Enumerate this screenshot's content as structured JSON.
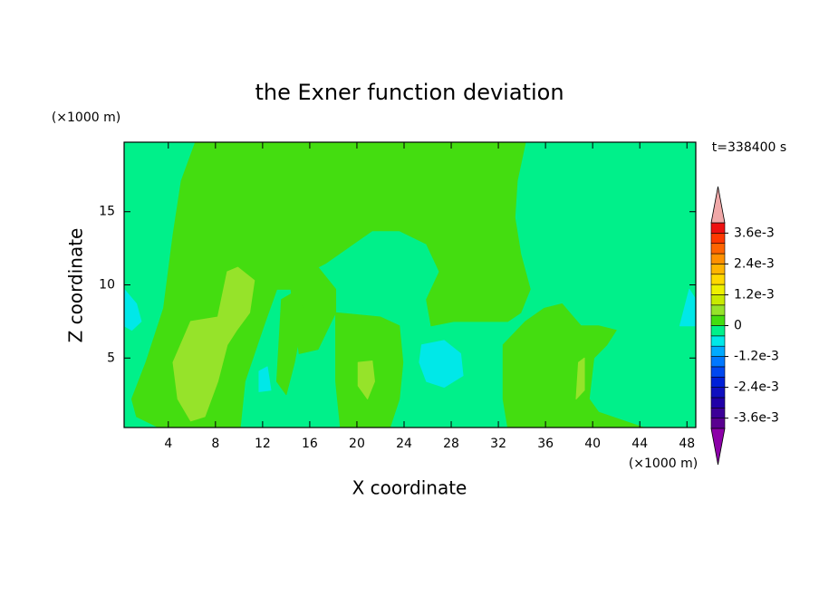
{
  "chart_data": {
    "type": "contour",
    "title": "the Exner function deviation",
    "xlabel": "X coordinate",
    "ylabel": "Z coordinate",
    "xunit": "(×1000 m)",
    "yunit": "(×1000 m)",
    "time_label": "t=338400 s",
    "xlim": [
      0.25,
      48.75
    ],
    "ylim": [
      0.25,
      19.75
    ],
    "xticks": [
      4,
      8,
      12,
      16,
      20,
      24,
      28,
      32,
      36,
      40,
      44,
      48
    ],
    "yticks": [
      5,
      10,
      15
    ],
    "colorbar": {
      "levels": [
        -0.004,
        -0.0036,
        -0.0032,
        -0.0028,
        -0.0024,
        -0.002,
        -0.0016,
        -0.0012,
        -0.0008,
        -0.0004,
        0,
        0.0004,
        0.0008,
        0.0012,
        0.0016,
        0.002,
        0.0024,
        0.0028,
        0.0032,
        0.0036,
        0.004
      ],
      "colors": [
        "#5a0090",
        "#3c0098",
        "#2000a8",
        "#1010c0",
        "#0020d8",
        "#0048f0",
        "#0078ff",
        "#00aaff",
        "#00e8e8",
        "#00f08a",
        "#44dd10",
        "#96e32a",
        "#c8ea00",
        "#eef000",
        "#ffd800",
        "#ffb400",
        "#ff9000",
        "#ff6400",
        "#ff3800",
        "#ee1010"
      ],
      "under_color": "#8c00a8",
      "over_color": "#f0a8a8",
      "ticks": [
        {
          "value": 0.0036,
          "label": "3.6e-3"
        },
        {
          "value": 0.0024,
          "label": "2.4e-3"
        },
        {
          "value": 0.0012,
          "label": "1.2e-3"
        },
        0,
        {
          "value": -0.0012,
          "label": "-1.2e-3"
        },
        {
          "value": -0.0024,
          "label": "-2.4e-3"
        },
        {
          "value": -0.0036,
          "label": "-3.6e-3"
        }
      ]
    },
    "contours": [
      {
        "level": -0.0004,
        "points": [
          [
            0.25,
            0.25
          ],
          [
            48.75,
            0.25
          ],
          [
            48.75,
            19.75
          ],
          [
            0.25,
            19.75
          ]
        ]
      },
      {
        "level": 0,
        "points": [
          [
            6.3,
            19.75
          ],
          [
            34.3,
            19.75
          ],
          [
            33.6,
            17.1
          ],
          [
            33.4,
            14.6
          ],
          [
            33.9,
            12.1
          ],
          [
            34.7,
            9.7
          ],
          [
            33.9,
            8.1
          ],
          [
            32.8,
            7.5
          ],
          [
            30.5,
            7.5
          ],
          [
            28.2,
            7.5
          ],
          [
            26.3,
            7.2
          ],
          [
            25.9,
            9.0
          ],
          [
            27.0,
            10.9
          ],
          [
            25.9,
            12.8
          ],
          [
            23.6,
            13.7
          ],
          [
            21.3,
            13.7
          ],
          [
            19.7,
            12.8
          ],
          [
            17.4,
            11.5
          ],
          [
            16.7,
            11.2
          ],
          [
            18.2,
            9.7
          ],
          [
            18.2,
            8.1
          ],
          [
            16.7,
            5.6
          ],
          [
            15.1,
            5.3
          ],
          [
            14.4,
            9.7
          ],
          [
            13.2,
            9.7
          ],
          [
            12.1,
            7.2
          ],
          [
            10.5,
            3.4
          ],
          [
            10.1,
            0.25
          ],
          [
            3.2,
            0.25
          ],
          [
            1.3,
            1.0
          ],
          [
            0.9,
            2.2
          ],
          [
            2.1,
            4.7
          ],
          [
            3.6,
            8.4
          ],
          [
            4.0,
            10.9
          ],
          [
            4.4,
            13.4
          ],
          [
            5.1,
            17.1
          ]
        ]
      },
      {
        "level": 0,
        "points": [
          [
            18.2,
            8.1
          ],
          [
            22.0,
            7.8
          ],
          [
            23.6,
            7.2
          ],
          [
            23.9,
            4.7
          ],
          [
            23.6,
            2.2
          ],
          [
            22.8,
            0.25
          ],
          [
            18.6,
            0.25
          ],
          [
            18.2,
            3.4
          ]
        ]
      },
      {
        "level": 0,
        "points": [
          [
            32.4,
            5.9
          ],
          [
            34.3,
            7.5
          ],
          [
            35.9,
            8.4
          ],
          [
            37.4,
            8.7
          ],
          [
            39.0,
            7.2
          ],
          [
            40.5,
            7.2
          ],
          [
            42.0,
            6.9
          ],
          [
            41.2,
            5.9
          ],
          [
            40.1,
            5.0
          ],
          [
            39.7,
            2.2
          ],
          [
            40.5,
            1.3
          ],
          [
            44.3,
            0.25
          ],
          [
            32.8,
            0.25
          ],
          [
            32.4,
            2.2
          ]
        ]
      },
      {
        "level": 0,
        "points": [
          [
            13.6,
            9.0
          ],
          [
            15.1,
            9.7
          ],
          [
            15.5,
            8.1
          ],
          [
            14.7,
            4.7
          ],
          [
            14.0,
            2.5
          ],
          [
            13.2,
            3.4
          ]
        ]
      },
      {
        "level": 0.0004,
        "points": [
          [
            5.9,
            7.5
          ],
          [
            8.2,
            7.8
          ],
          [
            9.0,
            10.9
          ],
          [
            9.9,
            11.2
          ],
          [
            11.3,
            10.3
          ],
          [
            10.9,
            8.1
          ],
          [
            9.8,
            6.9
          ],
          [
            9.0,
            5.9
          ],
          [
            8.2,
            3.4
          ],
          [
            7.1,
            1.0
          ],
          [
            5.9,
            0.7
          ],
          [
            4.8,
            2.2
          ],
          [
            4.4,
            4.7
          ]
        ]
      },
      {
        "level": 0.0004,
        "points": [
          [
            20.1,
            4.7
          ],
          [
            21.3,
            4.8
          ],
          [
            21.5,
            3.4
          ],
          [
            20.9,
            2.2
          ],
          [
            20.1,
            3.1
          ]
        ]
      },
      {
        "level": 0.0004,
        "points": [
          [
            38.8,
            4.7
          ],
          [
            39.3,
            5.0
          ],
          [
            39.3,
            2.8
          ],
          [
            38.6,
            2.2
          ]
        ]
      },
      {
        "level": -0.0008,
        "points": [
          [
            25.5,
            5.9
          ],
          [
            27.4,
            6.2
          ],
          [
            28.8,
            5.3
          ],
          [
            29.0,
            3.8
          ],
          [
            27.4,
            3.0
          ],
          [
            25.9,
            3.4
          ],
          [
            25.3,
            4.7
          ]
        ]
      },
      {
        "level": -0.0008,
        "points": [
          [
            0.25,
            9.7
          ],
          [
            1.3,
            8.7
          ],
          [
            1.7,
            7.5
          ],
          [
            0.9,
            6.9
          ],
          [
            0.25,
            7.2
          ]
        ]
      },
      {
        "level": -0.0008,
        "points": [
          [
            48.2,
            9.7
          ],
          [
            48.75,
            9.0
          ],
          [
            48.75,
            7.2
          ],
          [
            47.4,
            7.2
          ]
        ]
      },
      {
        "level": -0.0008,
        "points": [
          [
            11.7,
            4.1
          ],
          [
            12.4,
            4.4
          ],
          [
            12.7,
            2.8
          ],
          [
            11.7,
            2.7
          ]
        ]
      }
    ]
  }
}
